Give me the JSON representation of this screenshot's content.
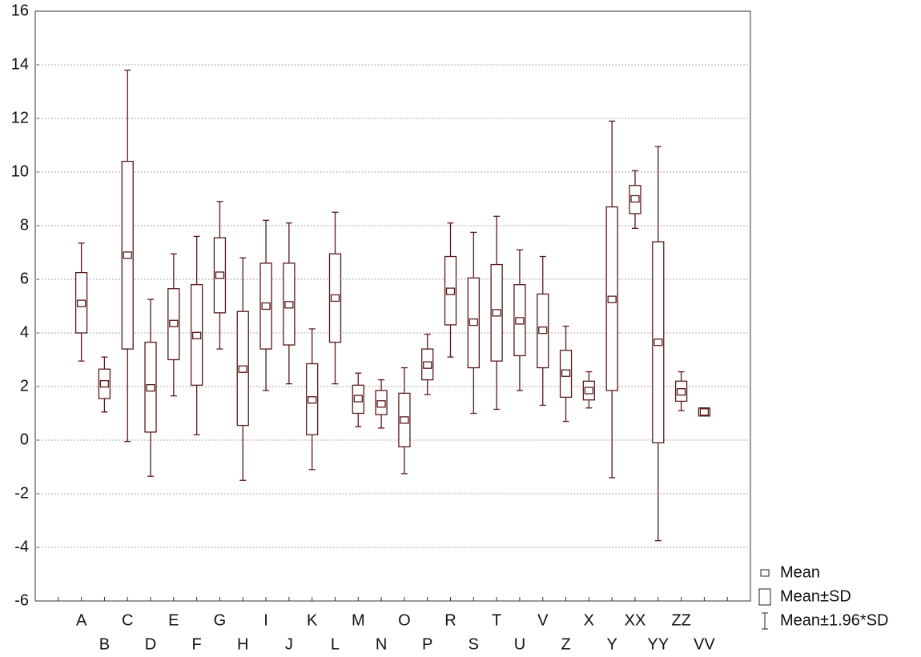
{
  "chart_data": {
    "type": "box",
    "categories": [
      "A",
      "B",
      "C",
      "D",
      "E",
      "F",
      "G",
      "H",
      "I",
      "J",
      "K",
      "L",
      "M",
      "N",
      "O",
      "P",
      "R",
      "S",
      "T",
      "U",
      "V",
      "Z",
      "X",
      "Y",
      "XX",
      "YY",
      "ZZ",
      "VV"
    ],
    "series": [
      {
        "name": "Mean",
        "values": [
          5.1,
          2.1,
          6.9,
          1.95,
          4.35,
          3.9,
          6.15,
          2.65,
          5.0,
          5.05,
          1.5,
          5.3,
          1.55,
          1.35,
          0.75,
          2.8,
          5.55,
          4.4,
          4.75,
          4.45,
          4.1,
          2.5,
          1.85,
          5.25,
          9.0,
          3.65,
          1.8,
          1.05
        ]
      },
      {
        "name": "Mean±SD",
        "low": [
          4.0,
          1.55,
          3.4,
          0.3,
          3.0,
          2.05,
          4.75,
          0.55,
          3.4,
          3.55,
          0.2,
          3.65,
          1.0,
          0.95,
          -0.25,
          2.25,
          4.3,
          2.7,
          2.95,
          3.15,
          2.7,
          1.6,
          1.5,
          1.85,
          8.45,
          -0.1,
          1.45,
          0.9
        ],
        "high": [
          6.25,
          2.65,
          10.4,
          3.65,
          5.65,
          5.8,
          7.55,
          4.8,
          6.6,
          6.6,
          2.85,
          6.95,
          2.05,
          1.85,
          1.75,
          3.4,
          6.85,
          6.05,
          6.55,
          5.8,
          5.45,
          3.35,
          2.2,
          8.7,
          9.5,
          7.4,
          2.2,
          1.2
        ]
      },
      {
        "name": "Mean±1.96*SD",
        "low": [
          2.95,
          1.05,
          -0.05,
          -1.35,
          1.65,
          0.2,
          3.4,
          -1.5,
          1.85,
          2.1,
          -1.1,
          2.1,
          0.5,
          0.45,
          -1.25,
          1.7,
          3.1,
          1.0,
          1.15,
          1.85,
          1.3,
          0.7,
          1.2,
          -1.4,
          7.9,
          -3.75,
          1.1,
          0.9
        ],
        "high": [
          7.35,
          3.1,
          13.8,
          5.25,
          6.95,
          7.6,
          8.9,
          6.8,
          8.2,
          8.1,
          4.15,
          8.5,
          2.5,
          2.25,
          2.7,
          3.95,
          8.1,
          7.75,
          8.35,
          7.1,
          6.85,
          4.25,
          2.55,
          11.9,
          10.05,
          10.95,
          2.55,
          1.2
        ]
      }
    ],
    "color": "#5a1a1a",
    "ylim": [
      -6,
      16
    ],
    "yticks": [
      -6,
      -4,
      -2,
      0,
      2,
      4,
      6,
      8,
      10,
      12,
      14,
      16
    ],
    "grid": true
  }
}
